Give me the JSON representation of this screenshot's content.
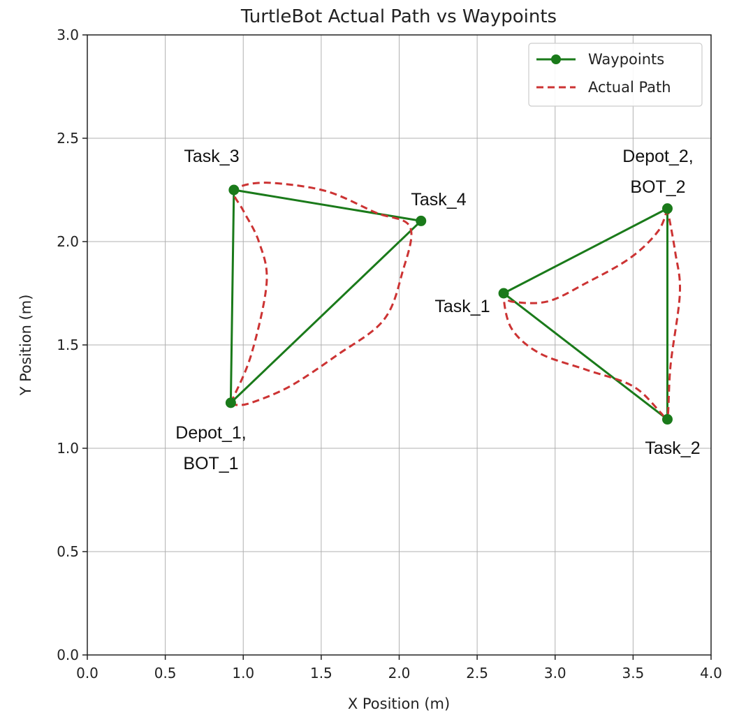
{
  "chart_data": {
    "type": "line",
    "title": "TurtleBot Actual Path vs Waypoints",
    "xlabel": "X Position (m)",
    "ylabel": "Y Position (m)",
    "xlim": [
      0.0,
      4.0
    ],
    "ylim": [
      0.0,
      3.0
    ],
    "xticks": [
      "0.0",
      "0.5",
      "1.0",
      "1.5",
      "2.0",
      "2.5",
      "3.0",
      "3.5",
      "4.0"
    ],
    "yticks": [
      "0.0",
      "0.5",
      "1.0",
      "1.5",
      "2.0",
      "2.5",
      "3.0"
    ],
    "grid": true,
    "legend": {
      "location": "top-right",
      "entries": [
        {
          "label": "Waypoints",
          "color": "#1a7a1a",
          "style": "solid-with-markers"
        },
        {
          "label": "Actual Path",
          "color": "#cc3333",
          "style": "dashed"
        }
      ]
    },
    "series": [
      {
        "name": "Waypoints",
        "color": "#1a7a1a",
        "segments": [
          {
            "x": [
              0.92,
              0.94,
              2.14,
              0.92
            ],
            "y": [
              1.22,
              2.25,
              2.1,
              1.22
            ]
          },
          {
            "x": [
              3.72,
              2.67,
              3.72,
              3.72
            ],
            "y": [
              2.16,
              1.75,
              1.14,
              2.16
            ]
          }
        ]
      },
      {
        "name": "Actual Path",
        "color": "#cc3333",
        "segments": [
          {
            "x": [
              0.92,
              1.05,
              1.15,
              1.1,
              1.0,
              0.94,
              1.05,
              1.25,
              1.55,
              1.85,
              2.07,
              2.02,
              1.9,
              1.6,
              1.3,
              1.05,
              0.95,
              0.92
            ],
            "y": [
              1.22,
              1.45,
              1.8,
              2.0,
              2.15,
              2.24,
              2.28,
              2.28,
              2.24,
              2.14,
              2.07,
              1.85,
              1.62,
              1.45,
              1.3,
              1.22,
              1.21,
              1.22
            ]
          },
          {
            "x": [
              3.72,
              3.66,
              3.48,
              3.2,
              2.95,
              2.72,
              2.67,
              2.72,
              2.9,
              3.2,
              3.5,
              3.68,
              3.72,
              3.74,
              3.8,
              3.77,
              3.72
            ],
            "y": [
              2.16,
              2.05,
              1.92,
              1.8,
              1.71,
              1.71,
              1.74,
              1.58,
              1.46,
              1.38,
              1.3,
              1.17,
              1.14,
              1.4,
              1.75,
              1.95,
              2.16
            ]
          }
        ]
      }
    ],
    "points": [
      {
        "label": "Depot_1, BOT_1",
        "x": 0.92,
        "y": 1.22
      },
      {
        "label": "Task_3",
        "x": 0.94,
        "y": 2.25
      },
      {
        "label": "Task_4",
        "x": 2.14,
        "y": 2.1
      },
      {
        "label": "Depot_2, BOT_2",
        "x": 3.72,
        "y": 2.16
      },
      {
        "label": "Task_1",
        "x": 2.67,
        "y": 1.75
      },
      {
        "label": "Task_2",
        "x": 3.72,
        "y": 1.14
      }
    ],
    "annotations": [
      {
        "lines": [
          "Task_3"
        ]
      },
      {
        "lines": [
          "Task_4"
        ]
      },
      {
        "lines": [
          "Depot_2,",
          "BOT_2"
        ]
      },
      {
        "lines": [
          "Task_1"
        ]
      },
      {
        "lines": [
          "Depot_1,",
          "BOT_1"
        ]
      },
      {
        "lines": [
          "Task_2"
        ]
      }
    ]
  }
}
